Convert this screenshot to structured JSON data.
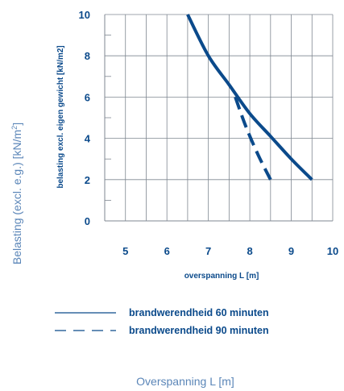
{
  "colors": {
    "series": "#0b4a8b",
    "text": "#0b4a8b",
    "outer_label": "#5b86b8",
    "grid": "#7f8791"
  },
  "outer": {
    "ylabel_main": "Belasting (excl. e.g.) [kN/m",
    "ylabel_sup": "2",
    "ylabel_end": "]",
    "xlabel": "Overspanning L [m]"
  },
  "legend": {
    "solid_label": "brandwerendheid 60 minuten",
    "dashed_label": "brandwerendheid 90 minuten"
  },
  "chart_data": {
    "type": "line",
    "xlabel": "overspanning L [m]",
    "ylabel": "belasting excl. eigen gewicht [kN/m2]",
    "xlim": [
      4.5,
      10
    ],
    "ylim": [
      0,
      10
    ],
    "x_ticks": [
      5,
      6,
      7,
      8,
      9,
      10
    ],
    "y_ticks": [
      0,
      2,
      4,
      6,
      8,
      10
    ],
    "grid": true,
    "series": [
      {
        "name": "brandwerendheid 60 minuten",
        "style": "solid",
        "points": [
          [
            6.5,
            10
          ],
          [
            7.0,
            8.0
          ],
          [
            7.5,
            6.6
          ],
          [
            8.0,
            5.2
          ],
          [
            8.5,
            4.1
          ],
          [
            9.0,
            3.0
          ],
          [
            9.5,
            2.0
          ]
        ]
      },
      {
        "name": "brandwerendheid 90 minuten",
        "style": "dashed",
        "points": [
          [
            7.65,
            6.0
          ],
          [
            7.9,
            4.6
          ],
          [
            8.2,
            3.2
          ],
          [
            8.5,
            2.0
          ]
        ]
      }
    ]
  }
}
